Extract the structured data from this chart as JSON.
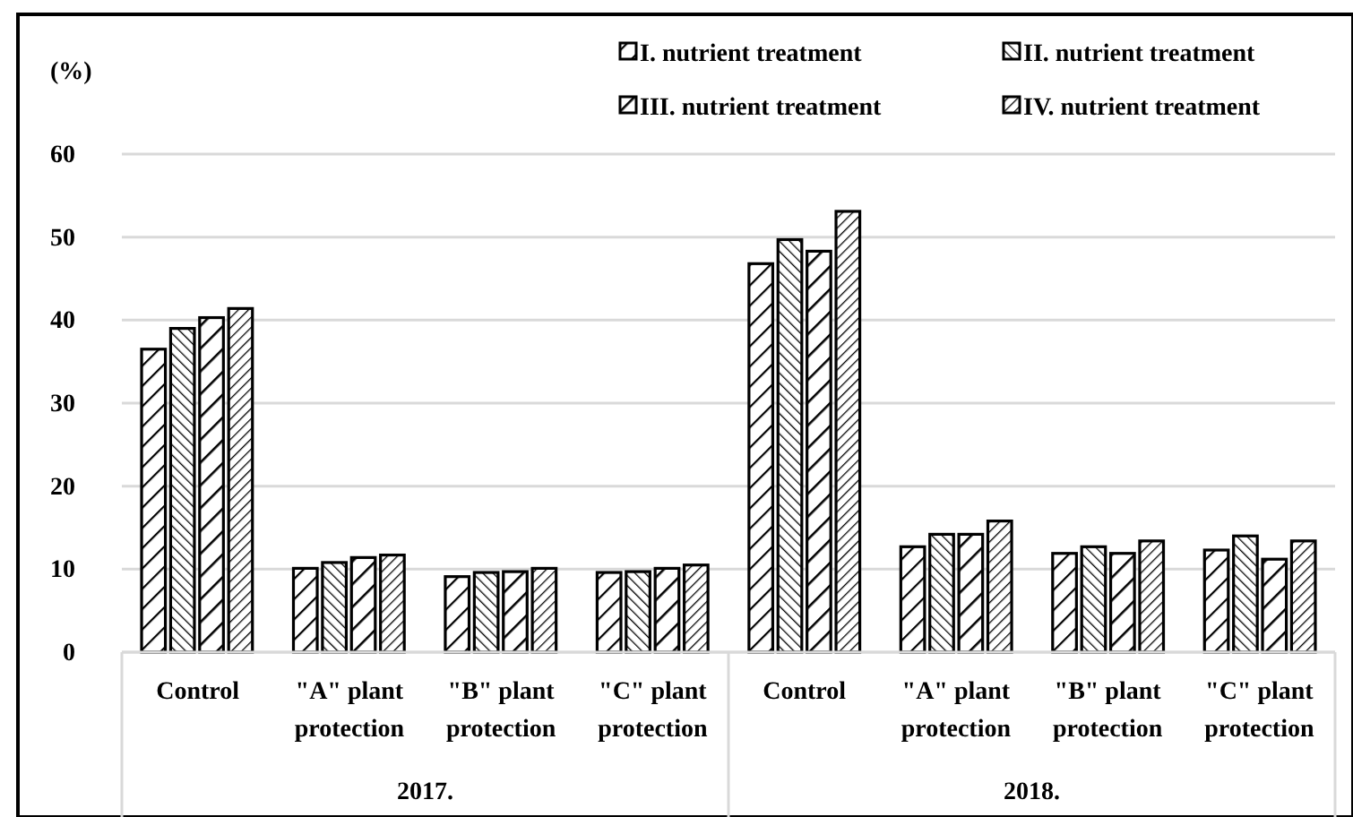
{
  "chart_data": {
    "type": "bar",
    "ylabel": "(%)",
    "categories": [
      "Control",
      "\"A\" plant protection",
      "\"B\" plant protection",
      "\"C\" plant protection",
      "Control",
      "\"A\" plant protection",
      "\"B\" plant protection",
      "\"C\" plant protection"
    ],
    "series": [
      {
        "name": "I. nutrient treatment",
        "color": "#000000",
        "values": [
          36.5,
          10.1,
          9.1,
          9.6,
          46.8,
          12.7,
          11.9,
          12.3
        ]
      },
      {
        "name": "II. nutrient treatment",
        "color": "#000000",
        "values": [
          39.0,
          10.8,
          9.6,
          9.7,
          49.7,
          14.2,
          12.7,
          14.0
        ]
      },
      {
        "name": "III. nutrient treatment",
        "color": "#000000",
        "values": [
          40.3,
          11.4,
          9.7,
          10.1,
          48.3,
          14.2,
          11.9,
          11.2
        ]
      },
      {
        "name": "IV. nutrient treatment",
        "color": "#000000",
        "values": [
          41.4,
          11.7,
          10.1,
          10.5,
          53.1,
          15.8,
          13.4,
          13.4
        ]
      }
    ],
    "annotations": [
      "2017.",
      "2018."
    ],
    "ylim": [
      0,
      60
    ],
    "yticks": [
      0,
      10,
      20,
      30,
      40,
      50,
      60
    ],
    "grid": "y",
    "legend": "top right"
  }
}
